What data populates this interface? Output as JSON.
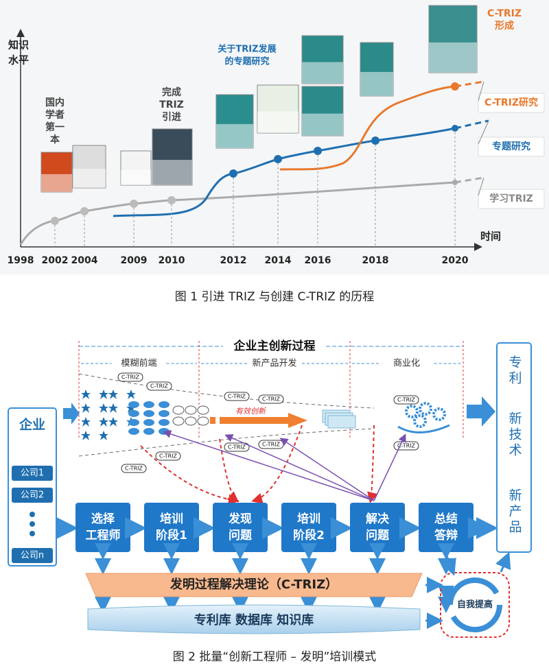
{
  "figure1": {
    "y_axis_label": [
      "知识",
      "水平"
    ],
    "x_axis_label": "时间",
    "years": [
      "1998",
      "2002",
      "2004",
      "2009",
      "2010",
      "2012",
      "2014",
      "2016",
      "2018",
      "2020"
    ],
    "annotations": [
      [
        "国内",
        "学者",
        "第一",
        "本"
      ],
      [
        "完成",
        "TRIZ",
        "引进"
      ],
      [
        "关于TRIZ发展",
        "的专题研究"
      ],
      [
        "C-TRIZ",
        "形成"
      ]
    ],
    "curves": [
      "学习TRIZ",
      "专题研究",
      "C-TRIZ研究"
    ],
    "caption": "图 1  引进 TRIZ 与创建 C-TRIZ 的历程"
  },
  "figure2": {
    "title": "企业主创新过程",
    "phases": [
      "模糊前端",
      "新产品开发",
      "商业化"
    ],
    "enterprise": "企业",
    "companies": [
      "公司1",
      "公司2",
      "公司n"
    ],
    "tag": "C-TRIZ",
    "funnel_label": "有效创新",
    "steps": [
      [
        "选择",
        "工程师"
      ],
      [
        "培训",
        "阶段1"
      ],
      [
        "发现",
        "问题"
      ],
      [
        "培训",
        "阶段2"
      ],
      [
        "解决",
        "问题"
      ],
      [
        "总结",
        "答辩"
      ]
    ],
    "theory": "发明过程解决理论（C-TRIZ）",
    "database": "专利库 数据库 知识库",
    "self": "自我提高",
    "outputs": [
      "专利",
      "新技术",
      "新产品"
    ],
    "caption": "图 2  批量“创新工程师 – 发明”培训模式"
  }
}
